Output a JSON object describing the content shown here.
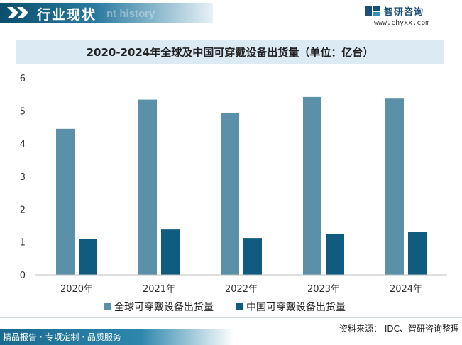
{
  "header": {
    "title": "行业现状",
    "subtitle": "nt history"
  },
  "brand": {
    "name": "智研咨询",
    "url": "www.chyxx.com"
  },
  "chart_data": {
    "type": "bar",
    "title": "2020-2024年全球及中国可穿戴设备出货量（单位：亿台）",
    "categories": [
      "2020年",
      "2021年",
      "2022年",
      "2023年",
      "2024年"
    ],
    "series": [
      {
        "name": "全球可穿戴设备出货量",
        "values": [
          4.45,
          5.34,
          4.93,
          5.42,
          5.37
        ],
        "color": "#5b91a8"
      },
      {
        "name": "中国可穿戴设备出货量",
        "values": [
          1.08,
          1.4,
          1.12,
          1.24,
          1.3
        ],
        "color": "#0f5c80"
      }
    ],
    "yticks": [
      0,
      1,
      2,
      3,
      4,
      5,
      6
    ],
    "ylim": [
      0,
      6
    ],
    "xlabel": "",
    "ylabel": "",
    "grid": false,
    "legend_position": "bottom"
  },
  "footer": {
    "tagline": "精品报告 · 专项定制 · 品质服务",
    "source": "资料来源： IDC、智研咨询整理"
  }
}
